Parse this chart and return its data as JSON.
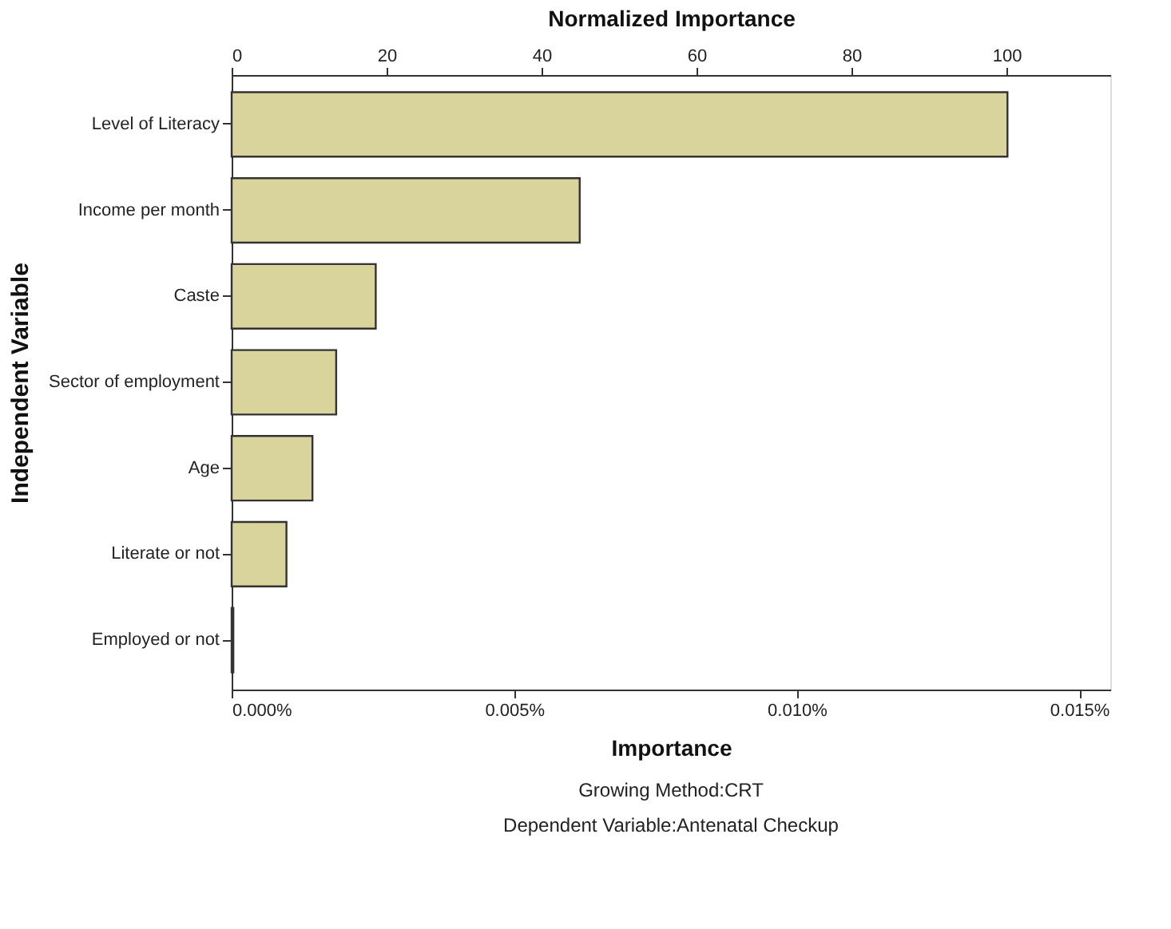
{
  "chart_data": {
    "type": "bar",
    "orientation": "horizontal",
    "xlabel": "Importance",
    "ylabel": "Independent Variable",
    "x2label": "Normalized Importance",
    "categories": [
      "Level of Literacy",
      "Income per month",
      "Caste",
      "Sector of employment",
      "Age",
      "Literate or not",
      "Employed or not"
    ],
    "values": [
      0.01373,
      0.00616,
      0.00255,
      0.00185,
      0.00143,
      0.00097,
      3e-05
    ],
    "color": "#d9d39c",
    "xlim": [
      0,
      0.01555
    ],
    "xticks": [
      {
        "value": 0,
        "label": "0.000%"
      },
      {
        "value": 0.005,
        "label": "0.005%"
      },
      {
        "value": 0.01,
        "label": "0.010%"
      },
      {
        "value": 0.015,
        "label": "0.015%"
      }
    ],
    "x2lim": [
      0,
      113.4
    ],
    "x2ticks": [
      0,
      20,
      40,
      60,
      80,
      100
    ],
    "grid": false,
    "annotations": [
      "Growing Method:CRT",
      "Dependent Variable:Antenatal Checkup"
    ]
  }
}
